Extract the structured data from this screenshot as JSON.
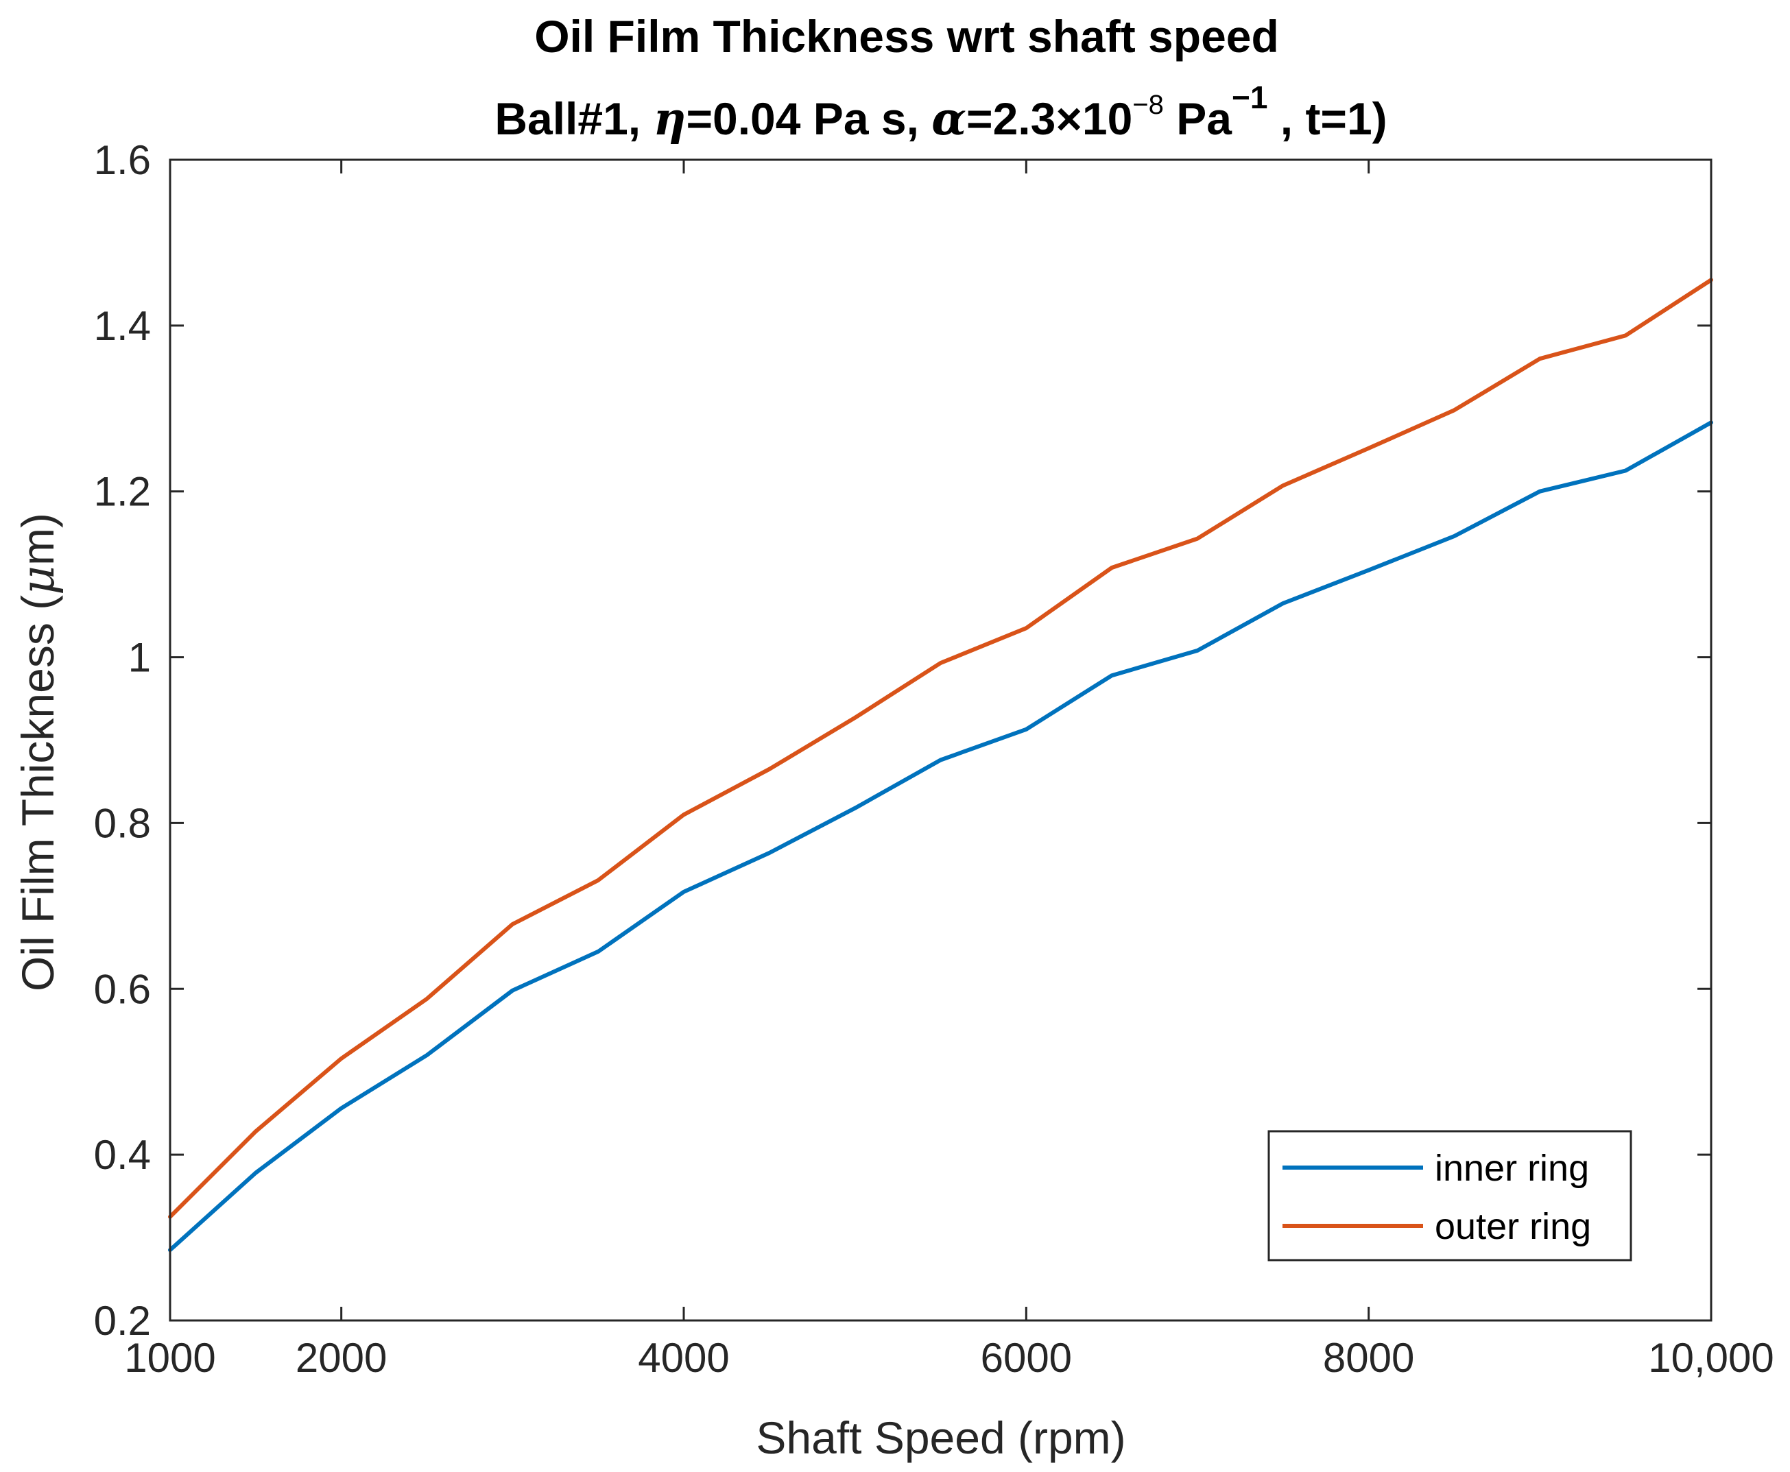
{
  "chart_data": {
    "type": "line",
    "title": "Oil Film Thickness wrt shaft speed",
    "subtitle": {
      "prefix": "Ball#1, ",
      "eta_symbol": "η",
      "eta_value": "=0.04 Pa s, ",
      "alpha_symbol": "α",
      "alpha_value": "=2.3×10",
      "alpha_exponent": "−8",
      "alpha_unit": " Pa",
      "unit_exponent": "−1",
      "suffix": " , t=1)"
    },
    "xlabel": "Shaft Speed (rpm)",
    "ylabel": {
      "prefix": "Oil Film Thickness (",
      "mu": "μ",
      "suffix": "m)"
    },
    "xlim": [
      1000,
      10000
    ],
    "ylim": [
      0.2,
      1.6
    ],
    "x_ticks": [
      1000,
      2000,
      4000,
      6000,
      8000,
      10000
    ],
    "x_tick_labels": [
      "1000",
      "2000",
      "4000",
      "6000",
      "8000",
      "10,000"
    ],
    "y_ticks": [
      0.2,
      0.4,
      0.6,
      0.8,
      1.0,
      1.2,
      1.4,
      1.6
    ],
    "y_tick_labels": [
      "0.2",
      "0.4",
      "0.6",
      "0.8",
      "1",
      "1.2",
      "1.4",
      "1.6"
    ],
    "grid": false,
    "legend_position": "bottom-right",
    "x": [
      1000,
      1500,
      2000,
      2500,
      3000,
      3500,
      4000,
      4500,
      5000,
      5500,
      6000,
      6500,
      7000,
      7500,
      8000,
      8500,
      9000,
      9500,
      10000
    ],
    "series": [
      {
        "name": "inner ring",
        "color": "#0072BD",
        "values": [
          0.285,
          0.378,
          0.456,
          0.52,
          0.598,
          0.645,
          0.717,
          0.764,
          0.818,
          0.876,
          0.913,
          0.978,
          1.008,
          1.065,
          1.105,
          1.146,
          1.2,
          1.225,
          1.283
        ]
      },
      {
        "name": "outer ring",
        "color": "#D95319",
        "values": [
          0.325,
          0.428,
          0.516,
          0.588,
          0.678,
          0.731,
          0.81,
          0.865,
          0.927,
          0.993,
          1.035,
          1.108,
          1.143,
          1.207,
          1.252,
          1.298,
          1.36,
          1.388,
          1.455
        ]
      }
    ]
  }
}
